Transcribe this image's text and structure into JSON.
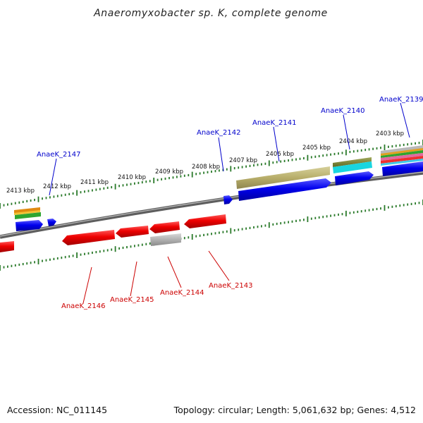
{
  "title": "Anaeromyxobacter sp. K, complete genome",
  "footer": {
    "accession": "Accession: NC_011145",
    "summary": "Topology: circular; Length: 5,061,632 bp; Genes: 4,512"
  },
  "colors": {
    "forward_label": "#0000cc",
    "reverse_label": "#cc0000",
    "forward_gene": "#0000ee",
    "reverse_gene": "#ee0000",
    "pseudo_gene": "#b0b0b0",
    "tick": "#2a7a2a",
    "backbone": "#808080"
  },
  "scale_labels": [
    "2413 kbp",
    "2412 kbp",
    "2411 kbp",
    "2410 kbp",
    "2409 kbp",
    "2408 kbp",
    "2407 kbp",
    "2406 kbp",
    "2405 kbp",
    "2404 kbp",
    "2403 kbp"
  ],
  "forward_gene_labels": [
    "AnaeK_2147",
    "AnaeK_2142",
    "AnaeK_2141",
    "AnaeK_2140",
    "AnaeK_2139"
  ],
  "reverse_gene_labels": [
    "AnaeK_2146",
    "AnaeK_2145",
    "AnaeK_2144",
    "AnaeK_2143"
  ]
}
